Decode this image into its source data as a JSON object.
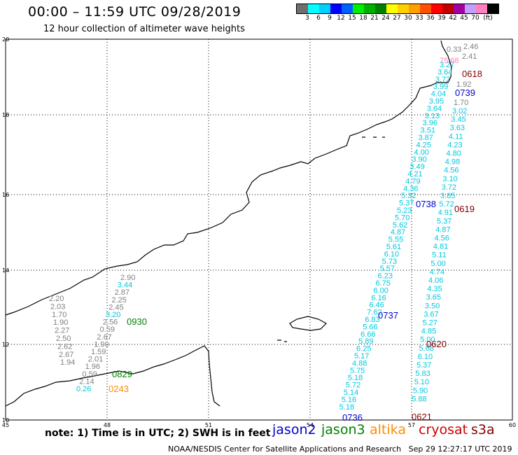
{
  "header": {
    "title": "00:00 – 11:59 UTC 09/28/2019",
    "subtitle": "12 hour collection of altimeter wave heights"
  },
  "colorbar": {
    "colors": [
      "#6e6e6e",
      "#00ffff",
      "#00d0ff",
      "#0000ff",
      "#0060ff",
      "#00ee00",
      "#00b000",
      "#008000",
      "#ffff00",
      "#ffd000",
      "#ffa000",
      "#ff5000",
      "#ff0000",
      "#c00000",
      "#a000a0",
      "#c0a0ff",
      "#ff80c0",
      "#000000"
    ],
    "labels": [
      "3",
      "6",
      "9",
      "12",
      "15",
      "18",
      "21",
      "24",
      "27",
      "30",
      "33",
      "36",
      "39",
      "42",
      "45",
      "70",
      "(ft)"
    ]
  },
  "axes": {
    "lon_labels": [
      "45",
      "48",
      "51",
      "54",
      "57",
      "60"
    ],
    "lat_labels": [
      "20",
      "18",
      "16",
      "14",
      "12",
      "10"
    ]
  },
  "times": [
    {
      "text": "0618",
      "color": "#800000"
    },
    {
      "text": "0739",
      "color": "#0000cc"
    },
    {
      "text": "0738",
      "color": "#0000cc"
    },
    {
      "text": "0619",
      "color": "#800000"
    },
    {
      "text": "0930",
      "color": "#008000"
    },
    {
      "text": "0737",
      "color": "#0000cc"
    },
    {
      "text": "0620",
      "color": "#800000"
    },
    {
      "text": "0829",
      "color": "#008000"
    },
    {
      "text": "0243",
      "color": "#ff8c00"
    },
    {
      "text": "0736",
      "color": "#0000cc"
    },
    {
      "text": "0621",
      "color": "#800000"
    }
  ],
  "tracks": {
    "gray_top": [
      "0.33",
      "2.46",
      "2.41",
      "1.92",
      "1.70"
    ],
    "pink_top": "75.68",
    "s3a_top": [
      "3.27",
      "3.64",
      "3.72",
      "3.99",
      "4.04",
      "3.95",
      "3.64",
      "3.13",
      "3.96",
      "3.51",
      "3.87",
      "4.25",
      "4.00",
      "3.90",
      "3.49",
      "4.21",
      "4.79",
      "4.36",
      "5.32",
      "5.37",
      "5.23",
      "5.70",
      "5.62",
      "4.87",
      "5.55",
      "5.61",
      "6.10",
      "5.73",
      "5.57",
      "6.23",
      "6.75",
      "6.00",
      "6.16",
      "6.46",
      "7.62",
      "6.83",
      "5.66",
      "6.66",
      "5.89",
      "6.25",
      "5.17",
      "4.88",
      "5.75",
      "5.18",
      "5.72",
      "5.14",
      "5.16",
      "5.18"
    ],
    "s3a_right": [
      "3.02",
      "3.45",
      "3.63",
      "4.11",
      "4.23",
      "4.80",
      "4.98",
      "4.56",
      "3.10",
      "3.72",
      "3.85",
      "5.72",
      "4.91",
      "5.37",
      "4.87",
      "4.56",
      "4.81",
      "5.11",
      "5.00",
      "4.74",
      "4.06",
      "4.35",
      "3.65",
      "3.50",
      "3.67",
      "5.27",
      "4.85",
      "5.00",
      "5.68",
      "6.10",
      "5.37",
      "5.83",
      "5.10",
      "5.90",
      "5.88"
    ],
    "altika": [
      "2.90",
      "3.44",
      "2.87",
      "2.25",
      "2.45",
      "3.20",
      "2.56",
      "0.59",
      "2.67",
      "1.90",
      "1.59",
      "2.01",
      "1.96",
      "0.59",
      "2.14",
      "0.26"
    ],
    "gray_left": [
      "2.20",
      "2.03",
      "1.70",
      "1.90",
      "2.27",
      "2.50",
      "2.62",
      "2.67",
      "1.94"
    ]
  },
  "footer": {
    "note": "note:  1) Time is in UTC;  2) SWH is in feet",
    "legend": [
      {
        "text": "jason2",
        "color": "#0000cc"
      },
      {
        "text": "jason3",
        "color": "#008000"
      },
      {
        "text": "altika",
        "color": "#ff8c00"
      },
      {
        "text": "cryosat",
        "color": "#cc0000"
      },
      {
        "text": "s3a",
        "color": "#800000"
      }
    ],
    "credit": "NOAA/NESDIS Center for Satellite Applications and Research   Sep 29 12:27:17 UTC 2019"
  }
}
